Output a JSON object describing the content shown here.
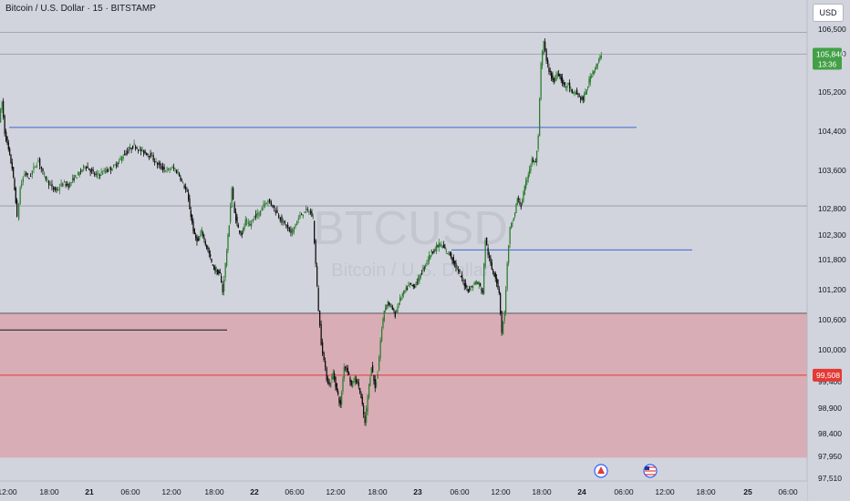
{
  "header": {
    "title": "Bitcoin / U.S. Dollar · 15 · BITSTAMP",
    "currency_button": "USD"
  },
  "watermark": {
    "symbol": "BTCUSD",
    "name": "Bitcoin / U.S. Dollar"
  },
  "price_axis": {
    "ticks": [
      "106,500",
      "106,000",
      "105,200",
      "104,400",
      "103,600",
      "102,800",
      "102,300",
      "101,800",
      "101,200",
      "100,600",
      "100,000",
      "99,400",
      "98,900",
      "98,400",
      "97,950",
      "97,510"
    ],
    "last_price_label": "105,846",
    "countdown_label": "13:36",
    "level_label": "99,508"
  },
  "time_axis": {
    "ticks": [
      "12:00",
      "18:00",
      "21",
      "06:00",
      "12:00",
      "18:00",
      "22",
      "06:00",
      "12:00",
      "18:00",
      "23",
      "06:00",
      "12:00",
      "18:00",
      "24",
      "06:00",
      "12:00",
      "18:00",
      "25",
      "06:00"
    ]
  },
  "colors": {
    "background": "#d1d4dc",
    "up": "#2e7d32",
    "down": "#0f0f0f",
    "zone": "#d9adb6",
    "blue_level": "#4163d6",
    "red_level": "#e53935",
    "last_price_badge": "#43a047",
    "level_badge": "#e53935"
  },
  "event_icons": [
    "calendar-event-icon",
    "us-flag-event-icon"
  ],
  "chart_data": {
    "type": "candlestick",
    "title": "Bitcoin / U.S. Dollar · 15 · BITSTAMP",
    "ylim": [
      97510,
      106700
    ],
    "price_path": [
      [
        0,
        104550
      ],
      [
        3,
        104900
      ],
      [
        6,
        104300
      ],
      [
        10,
        103950
      ],
      [
        14,
        103600
      ],
      [
        18,
        102950
      ],
      [
        20,
        102600
      ],
      [
        23,
        103200
      ],
      [
        28,
        103500
      ],
      [
        33,
        103400
      ],
      [
        38,
        103600
      ],
      [
        43,
        103750
      ],
      [
        48,
        103500
      ],
      [
        53,
        103350
      ],
      [
        58,
        103200
      ],
      [
        63,
        103150
      ],
      [
        70,
        103300
      ],
      [
        76,
        103250
      ],
      [
        82,
        103400
      ],
      [
        88,
        103500
      ],
      [
        94,
        103650
      ],
      [
        100,
        103550
      ],
      [
        106,
        103450
      ],
      [
        112,
        103500
      ],
      [
        118,
        103550
      ],
      [
        124,
        103600
      ],
      [
        130,
        103700
      ],
      [
        136,
        103850
      ],
      [
        142,
        103950
      ],
      [
        148,
        104050
      ],
      [
        154,
        103950
      ],
      [
        160,
        103900
      ],
      [
        166,
        103850
      ],
      [
        172,
        103700
      ],
      [
        178,
        103600
      ],
      [
        184,
        103550
      ],
      [
        190,
        103600
      ],
      [
        196,
        103500
      ],
      [
        200,
        103350
      ],
      [
        206,
        103100
      ],
      [
        210,
        102650
      ],
      [
        214,
        102250
      ],
      [
        218,
        102150
      ],
      [
        222,
        102350
      ],
      [
        226,
        102100
      ],
      [
        230,
        101900
      ],
      [
        234,
        101650
      ],
      [
        238,
        101550
      ],
      [
        242,
        101500
      ],
      [
        245,
        101150
      ],
      [
        248,
        101700
      ],
      [
        252,
        102500
      ],
      [
        255,
        103200
      ],
      [
        258,
        102700
      ],
      [
        262,
        102400
      ],
      [
        266,
        102300
      ],
      [
        270,
        102550
      ],
      [
        275,
        102450
      ],
      [
        280,
        102650
      ],
      [
        285,
        102700
      ],
      [
        290,
        102900
      ],
      [
        295,
        102950
      ],
      [
        300,
        102850
      ],
      [
        305,
        102700
      ],
      [
        310,
        102550
      ],
      [
        315,
        102450
      ],
      [
        320,
        102300
      ],
      [
        325,
        102500
      ],
      [
        330,
        102650
      ],
      [
        335,
        102750
      ],
      [
        340,
        102750
      ],
      [
        344,
        102600
      ],
      [
        347,
        101700
      ],
      [
        350,
        100800
      ],
      [
        353,
        100150
      ],
      [
        356,
        99800
      ],
      [
        359,
        99450
      ],
      [
        362,
        99300
      ],
      [
        366,
        99550
      ],
      [
        370,
        99200
      ],
      [
        374,
        98900
      ],
      [
        378,
        99700
      ],
      [
        382,
        99600
      ],
      [
        386,
        99300
      ],
      [
        390,
        99450
      ],
      [
        394,
        99300
      ],
      [
        398,
        98900
      ],
      [
        401,
        98550
      ],
      [
        404,
        99100
      ],
      [
        408,
        99700
      ],
      [
        412,
        99250
      ],
      [
        415,
        99550
      ],
      [
        418,
        100200
      ],
      [
        422,
        100800
      ],
      [
        426,
        100950
      ],
      [
        430,
        100850
      ],
      [
        434,
        100700
      ],
      [
        438,
        100950
      ],
      [
        442,
        101100
      ],
      [
        446,
        101200
      ],
      [
        450,
        101300
      ],
      [
        454,
        101250
      ],
      [
        458,
        101350
      ],
      [
        462,
        101500
      ],
      [
        466,
        101650
      ],
      [
        470,
        101800
      ],
      [
        474,
        101950
      ],
      [
        478,
        102000
      ],
      [
        482,
        102100
      ],
      [
        486,
        102050
      ],
      [
        490,
        101950
      ],
      [
        494,
        101900
      ],
      [
        498,
        101750
      ],
      [
        502,
        101600
      ],
      [
        506,
        101450
      ],
      [
        510,
        101300
      ],
      [
        514,
        101200
      ],
      [
        518,
        101250
      ],
      [
        522,
        101350
      ],
      [
        526,
        101300
      ],
      [
        530,
        101150
      ],
      [
        533,
        102200
      ],
      [
        536,
        101900
      ],
      [
        540,
        101600
      ],
      [
        544,
        101450
      ],
      [
        548,
        101150
      ],
      [
        551,
        100350
      ],
      [
        554,
        100750
      ],
      [
        557,
        101700
      ],
      [
        560,
        102400
      ],
      [
        564,
        102600
      ],
      [
        568,
        103000
      ],
      [
        572,
        102850
      ],
      [
        576,
        103200
      ],
      [
        580,
        103500
      ],
      [
        584,
        103750
      ],
      [
        588,
        103700
      ],
      [
        591,
        104200
      ],
      [
        594,
        105650
      ],
      [
        597,
        106100
      ],
      [
        600,
        105700
      ],
      [
        604,
        105450
      ],
      [
        608,
        105300
      ],
      [
        612,
        105500
      ],
      [
        616,
        105350
      ],
      [
        620,
        105200
      ],
      [
        624,
        105250
      ],
      [
        628,
        105050
      ],
      [
        632,
        105100
      ],
      [
        636,
        105000
      ],
      [
        640,
        104950
      ],
      [
        644,
        105150
      ],
      [
        648,
        105400
      ],
      [
        652,
        105550
      ],
      [
        656,
        105650
      ],
      [
        660,
        105846
      ]
    ],
    "levels": [
      {
        "name": "blue-level-upper",
        "price": 104400
      },
      {
        "name": "blue-level-lower",
        "price": 101980
      },
      {
        "name": "black-level-left",
        "price": 100400
      },
      {
        "name": "red-level",
        "price": 99508
      }
    ],
    "zone": {
      "top": 100730,
      "bottom": 97880
    },
    "grid_lines": [
      106280,
      105846,
      102850
    ]
  }
}
